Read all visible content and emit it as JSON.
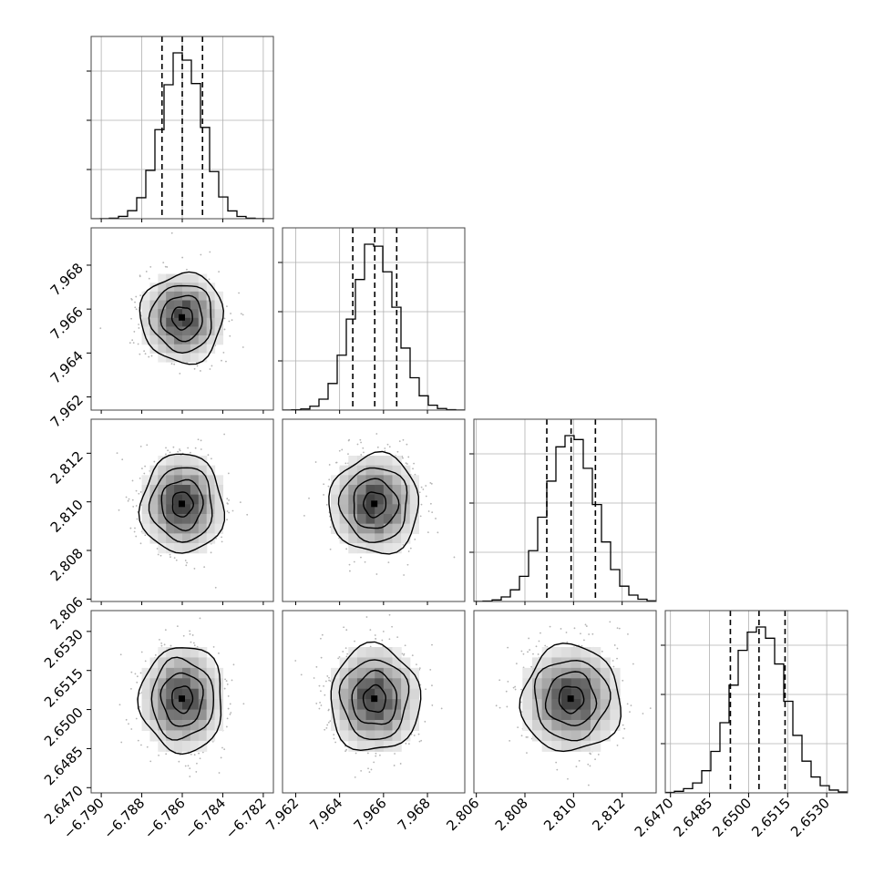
{
  "chart_data": {
    "type": "corner",
    "title": "",
    "grid": true,
    "parameters": [
      {
        "range": [
          -6.7905,
          -6.7815
        ],
        "mean": -6.786,
        "sigma": 0.001,
        "q16": -6.787,
        "q50": -6.786,
        "q84": -6.785,
        "ticks": [
          -6.79,
          -6.788,
          -6.786,
          -6.784,
          -6.782
        ],
        "tick_labels": [
          "−6.790",
          "−6.788",
          "−6.786",
          "−6.784",
          "−6.782"
        ]
      },
      {
        "range": [
          7.9614,
          7.9697
        ],
        "mean": 7.9656,
        "sigma": 0.001,
        "q16": 7.9646,
        "q50": 7.9656,
        "q84": 7.9666,
        "ticks": [
          7.962,
          7.964,
          7.966,
          7.968
        ],
        "tick_labels": [
          "7.962",
          "7.964",
          "7.966",
          "7.968"
        ]
      },
      {
        "range": [
          2.8059,
          2.8134
        ],
        "mean": 2.8099,
        "sigma": 0.001,
        "q16": 2.8089,
        "q50": 2.8099,
        "q84": 2.8109,
        "ticks": [
          2.806,
          2.808,
          2.81,
          2.812
        ],
        "tick_labels": [
          "2.806",
          "2.808",
          "2.810",
          "2.812"
        ]
      },
      {
        "range": [
          2.6468,
          2.6538
        ],
        "mean": 2.6504,
        "sigma": 0.001,
        "q16": 2.6493,
        "q50": 2.6504,
        "q84": 2.6514,
        "ticks": [
          2.647,
          2.6485,
          2.65,
          2.6515,
          2.653
        ],
        "tick_labels": [
          "2.6470",
          "2.6485",
          "2.6500",
          "2.6515",
          "2.6530"
        ]
      }
    ],
    "histogram_bins": 20,
    "contour_levels_sigma": [
      0.5,
      1.0,
      1.5,
      2.0
    ],
    "colors": {
      "line": "#000000",
      "points": "#b4b4b4",
      "grid": "#b0b0b0"
    }
  }
}
